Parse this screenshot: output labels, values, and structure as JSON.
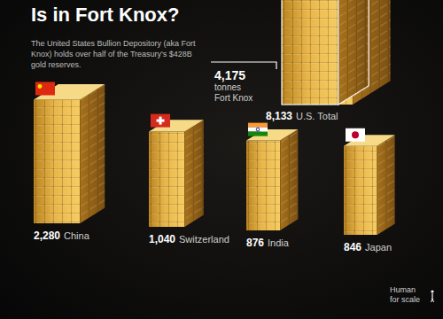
{
  "chart_data": {
    "type": "bar",
    "title": "Is in Fort Knox?",
    "subtitle": "The United States Bullion Depository (aka Fort Knox) holds over half of the Treasury's $428B gold reserves.",
    "categories": [
      "U.S. Total",
      "Fort Knox",
      "China",
      "Switzerland",
      "India",
      "Japan"
    ],
    "values": [
      8133,
      4175,
      2280,
      1040,
      876,
      846
    ],
    "value_labels": [
      "8,133",
      "4,175",
      "2,280",
      "1,040",
      "876",
      "846"
    ],
    "annotations": [
      "tonnes",
      "Human for scale"
    ],
    "color": "#e8b64a",
    "data_labels": true,
    "tick_labels": false
  }
}
